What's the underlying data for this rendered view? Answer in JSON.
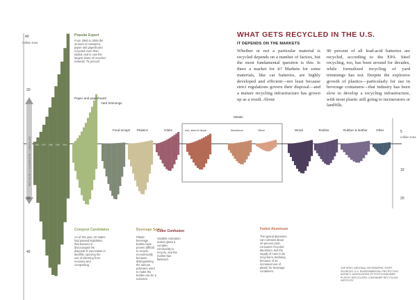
{
  "article": {
    "headline": "WHAT GETS RECYCLED IN THE U.S.",
    "subhead": "IT DEPENDS ON THE MARKETS",
    "col1": "Whether or not a particular material is recycled depends on a number of factors, but the most fundamental question is this: Is there a market for it? Markets for some materials, like car batteries, are highly developed and efficient—not least because strict regulations govern their disposal—and a mature recycling infrastructure has grown up as a result. About",
    "col2": "90 percent of all lead-acid batteries are recycled, according to the EPA. Steel recycling, too, has been around for decades, while formalized recycling of yard trimmings has not. Despite the explosive growth of plastics—particularly for use in beverage containers—that industry has been slow to develop a recycling infrastructure, with most plastic still going to incinerators or landfills.",
    "credit": "JOE KENT, NATIONAL GEOGRAPHIC STAFF. SOURCES: U.S. ENVIRONMENTAL PROTECTION AGENCY; ASSOCIATION OF POSTCONSUMER PLASTIC RECYCLERS; CONTAINER RECYCLING INSTITUTE"
  },
  "chart_data": {
    "type": "area",
    "title": "",
    "unit": "million tons",
    "scale_note": "Each material's stream is drawn as stacked yearly bars, 1960 to 2006: recycled tons rise above the baseline, tons landfilled or incinerated fall below it.",
    "left_axis": {
      "ticks": [
        "40",
        "20",
        "20",
        "40"
      ],
      "unit_label": "million tons",
      "range": [
        -50,
        40
      ]
    },
    "right_axis": {
      "ticks": [
        "5",
        "10",
        "20"
      ],
      "unit_label": "million tons",
      "range": [
        -20,
        5
      ]
    },
    "categories_main": [
      "Paper and paperboard",
      "Yard trimmings",
      "Food scraps",
      "Plastics",
      "Glass"
    ],
    "categories_right": [
      "Iron, steel & nickel",
      "Aluminum",
      "Other",
      "Wood",
      "Textiles",
      "Rubber & leather",
      "Other"
    ],
    "metals_group": "Metals",
    "series": [
      {
        "name": "Paper and paperboard",
        "color": "#6e7f55",
        "recycled_peak": 44,
        "discarded_peak": 50
      },
      {
        "name": "Yard trimmings",
        "color": "#a8bb7e",
        "recycled_peak": 21,
        "discarded_peak": 23
      },
      {
        "name": "Food scraps",
        "color": "#7f8a76",
        "recycled_peak": 0.5,
        "discarded_peak": 21
      },
      {
        "name": "Plastics",
        "color": "#cdc19a",
        "recycled_peak": 1.5,
        "discarded_peak": 21
      },
      {
        "name": "Glass",
        "color": "#9c5e6e",
        "recycled_peak": 5,
        "discarded_peak": 10
      },
      {
        "name": "Iron, steel & nickel",
        "color": "#b56a56",
        "recycled_peak": 4,
        "discarded_peak": 10
      },
      {
        "name": "Aluminum",
        "color": "#c58a6c",
        "recycled_peak": 1,
        "discarded_peak": 7
      },
      {
        "name": "Other",
        "color": "#d9a084",
        "recycled_peak": 1.2,
        "discarded_peak": 2.5
      },
      {
        "name": "Wood",
        "color": "#4d3d5c",
        "recycled_peak": 1.5,
        "discarded_peak": 14
      },
      {
        "name": "Textiles",
        "color": "#5f4f72",
        "recycled_peak": 2,
        "discarded_peak": 9
      },
      {
        "name": "Rubber & leather",
        "color": "#7a6a8c",
        "recycled_peak": 1.2,
        "discarded_peak": 7
      },
      {
        "name": "Other",
        "color": "#4b5f73",
        "recycled_peak": 0.5,
        "discarded_peak": 4
      }
    ],
    "annotations": {
      "popular_expert_title": "Popular Expert",
      "popular_expert_body": "From 1960 to 2006 the amount of newsprint, paper and paperboard recycled more than tripled, and is now the largest share of recycled material: 78 percent",
      "compost_title": "Compost Candidates",
      "compost_body": "As of this year, 20 states had passed legislation that banned or discouraged the disposal of yard waste in landfills, spurring the use of diverting from recovery and composting.",
      "beverage_title": "Beverage Spike",
      "beverage_body": "Plastic beverage bottles have proven difficult to recycle economically, because distinguishing the various polymers used to make the bottles can be a nuisance.",
      "color_title": "Color Confusion",
      "color_body": "Variable coloration makes glass a complex commodity to recycle, and the market has flattened.",
      "aluminum_title": "Faded Aluminum",
      "aluminum_body": "The typical aluminum can contains about 40 percent post-consumer recycled aluminum. But the supply of cans to be recycled is declining because of an increased use of plastic for beverage containers."
    },
    "vertical_axis_label": "RECYCLED or INCINERATED / LANDFILLED",
    "year_strip": [
      "1960",
      "1970",
      "1980",
      "1990",
      "2000"
    ]
  }
}
